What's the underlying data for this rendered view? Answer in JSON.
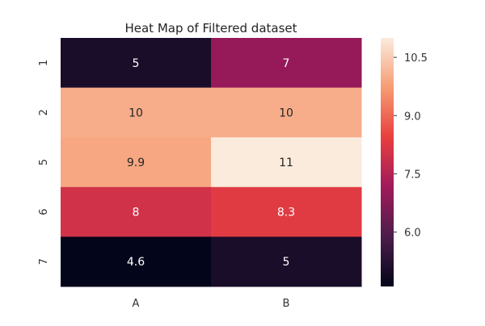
{
  "chart_data": {
    "type": "heatmap",
    "title": "Heat Map of Filtered dataset",
    "xlabel": "",
    "ylabel": "",
    "x_categories": [
      "A",
      "B"
    ],
    "y_categories": [
      "1",
      "2",
      "5",
      "6",
      "7"
    ],
    "values": [
      [
        5.0,
        7.0
      ],
      [
        10.0,
        10.0
      ],
      [
        9.9,
        11.0
      ],
      [
        8.0,
        8.3
      ],
      [
        4.6,
        5.0
      ]
    ],
    "cell_labels": [
      [
        "5",
        "7"
      ],
      [
        "10",
        "10"
      ],
      [
        "9.9",
        "11"
      ],
      [
        "8",
        "8.3"
      ],
      [
        "4.6",
        "5"
      ]
    ],
    "colorbar": {
      "range": [
        4.6,
        11.0
      ],
      "ticks": [
        6.0,
        7.5,
        9.0,
        10.5
      ],
      "tick_labels": [
        "6.0",
        "7.5",
        "9.0",
        "10.5"
      ]
    },
    "colormap": [
      "#03051a",
      "#4c1d4b",
      "#a11a5b",
      "#e83f3f",
      "#f69c73",
      "#faebdd"
    ]
  }
}
